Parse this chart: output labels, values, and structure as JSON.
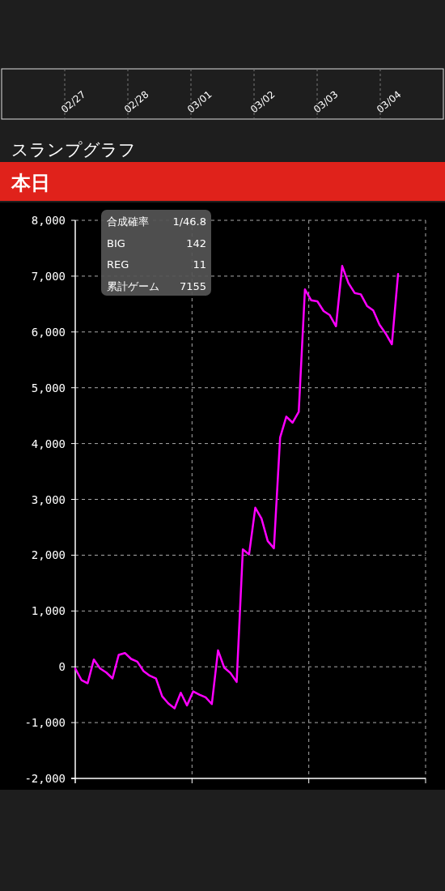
{
  "chart_data": {
    "type": "line",
    "title": "スランプグラフ",
    "subtitle": "本日",
    "categories": [
      null,
      null,
      null,
      null,
      null,
      null,
      null,
      null,
      null,
      null,
      null,
      null,
      null,
      null,
      null,
      null,
      null,
      null,
      null,
      null,
      null,
      null,
      null,
      null,
      null,
      null,
      null,
      null,
      null,
      null,
      null,
      null,
      null,
      null,
      null,
      null,
      null,
      null,
      null,
      null,
      null,
      null,
      null,
      null,
      null,
      null,
      null,
      null,
      null,
      null,
      null,
      null,
      null
    ],
    "series": [
      {
        "color": "#ff00ff",
        "values": [
          -30,
          -237,
          -295,
          131,
          -29,
          -102,
          -208,
          213,
          247,
          141,
          92,
          -77,
          -160,
          -208,
          -528,
          -658,
          -745,
          -465,
          -692,
          -441,
          -499,
          -547,
          -668,
          295,
          -15,
          -111,
          -271,
          2105,
          2014,
          2850,
          2657,
          2255,
          2124,
          4109,
          4482,
          4375,
          4569,
          6761,
          6567,
          6548,
          6374,
          6301,
          6102,
          7182,
          6878,
          6698,
          6674,
          6466,
          6384,
          6132,
          5972,
          5779,
          7037
        ]
      }
    ],
    "ylim": [
      -2000,
      8000
    ],
    "yticks": [
      {
        "value": -2000,
        "label": "-2,000"
      },
      {
        "value": -1000,
        "label": "-1,000"
      },
      0,
      {
        "value": 1000,
        "label": "1,000"
      },
      {
        "value": 2000,
        "label": "2,000"
      },
      {
        "value": 3000,
        "label": "3,000"
      },
      {
        "value": 4000,
        "label": "4,000"
      },
      {
        "value": 5000,
        "label": "5,000"
      },
      {
        "value": 6000,
        "label": "6,000"
      },
      {
        "value": 7000,
        "label": "7,000"
      },
      {
        "value": 8000,
        "label": "8,000"
      }
    ],
    "grid": true,
    "line_style": "solid",
    "marker": "none",
    "annotations": [
      "合成確率",
      "1/46.8",
      "BIG",
      "142",
      "REG",
      "11",
      "累計ゲーム",
      "7155",
      "02/27",
      "02/28",
      "03/01",
      "03/02",
      "03/03",
      "03/04"
    ]
  }
}
